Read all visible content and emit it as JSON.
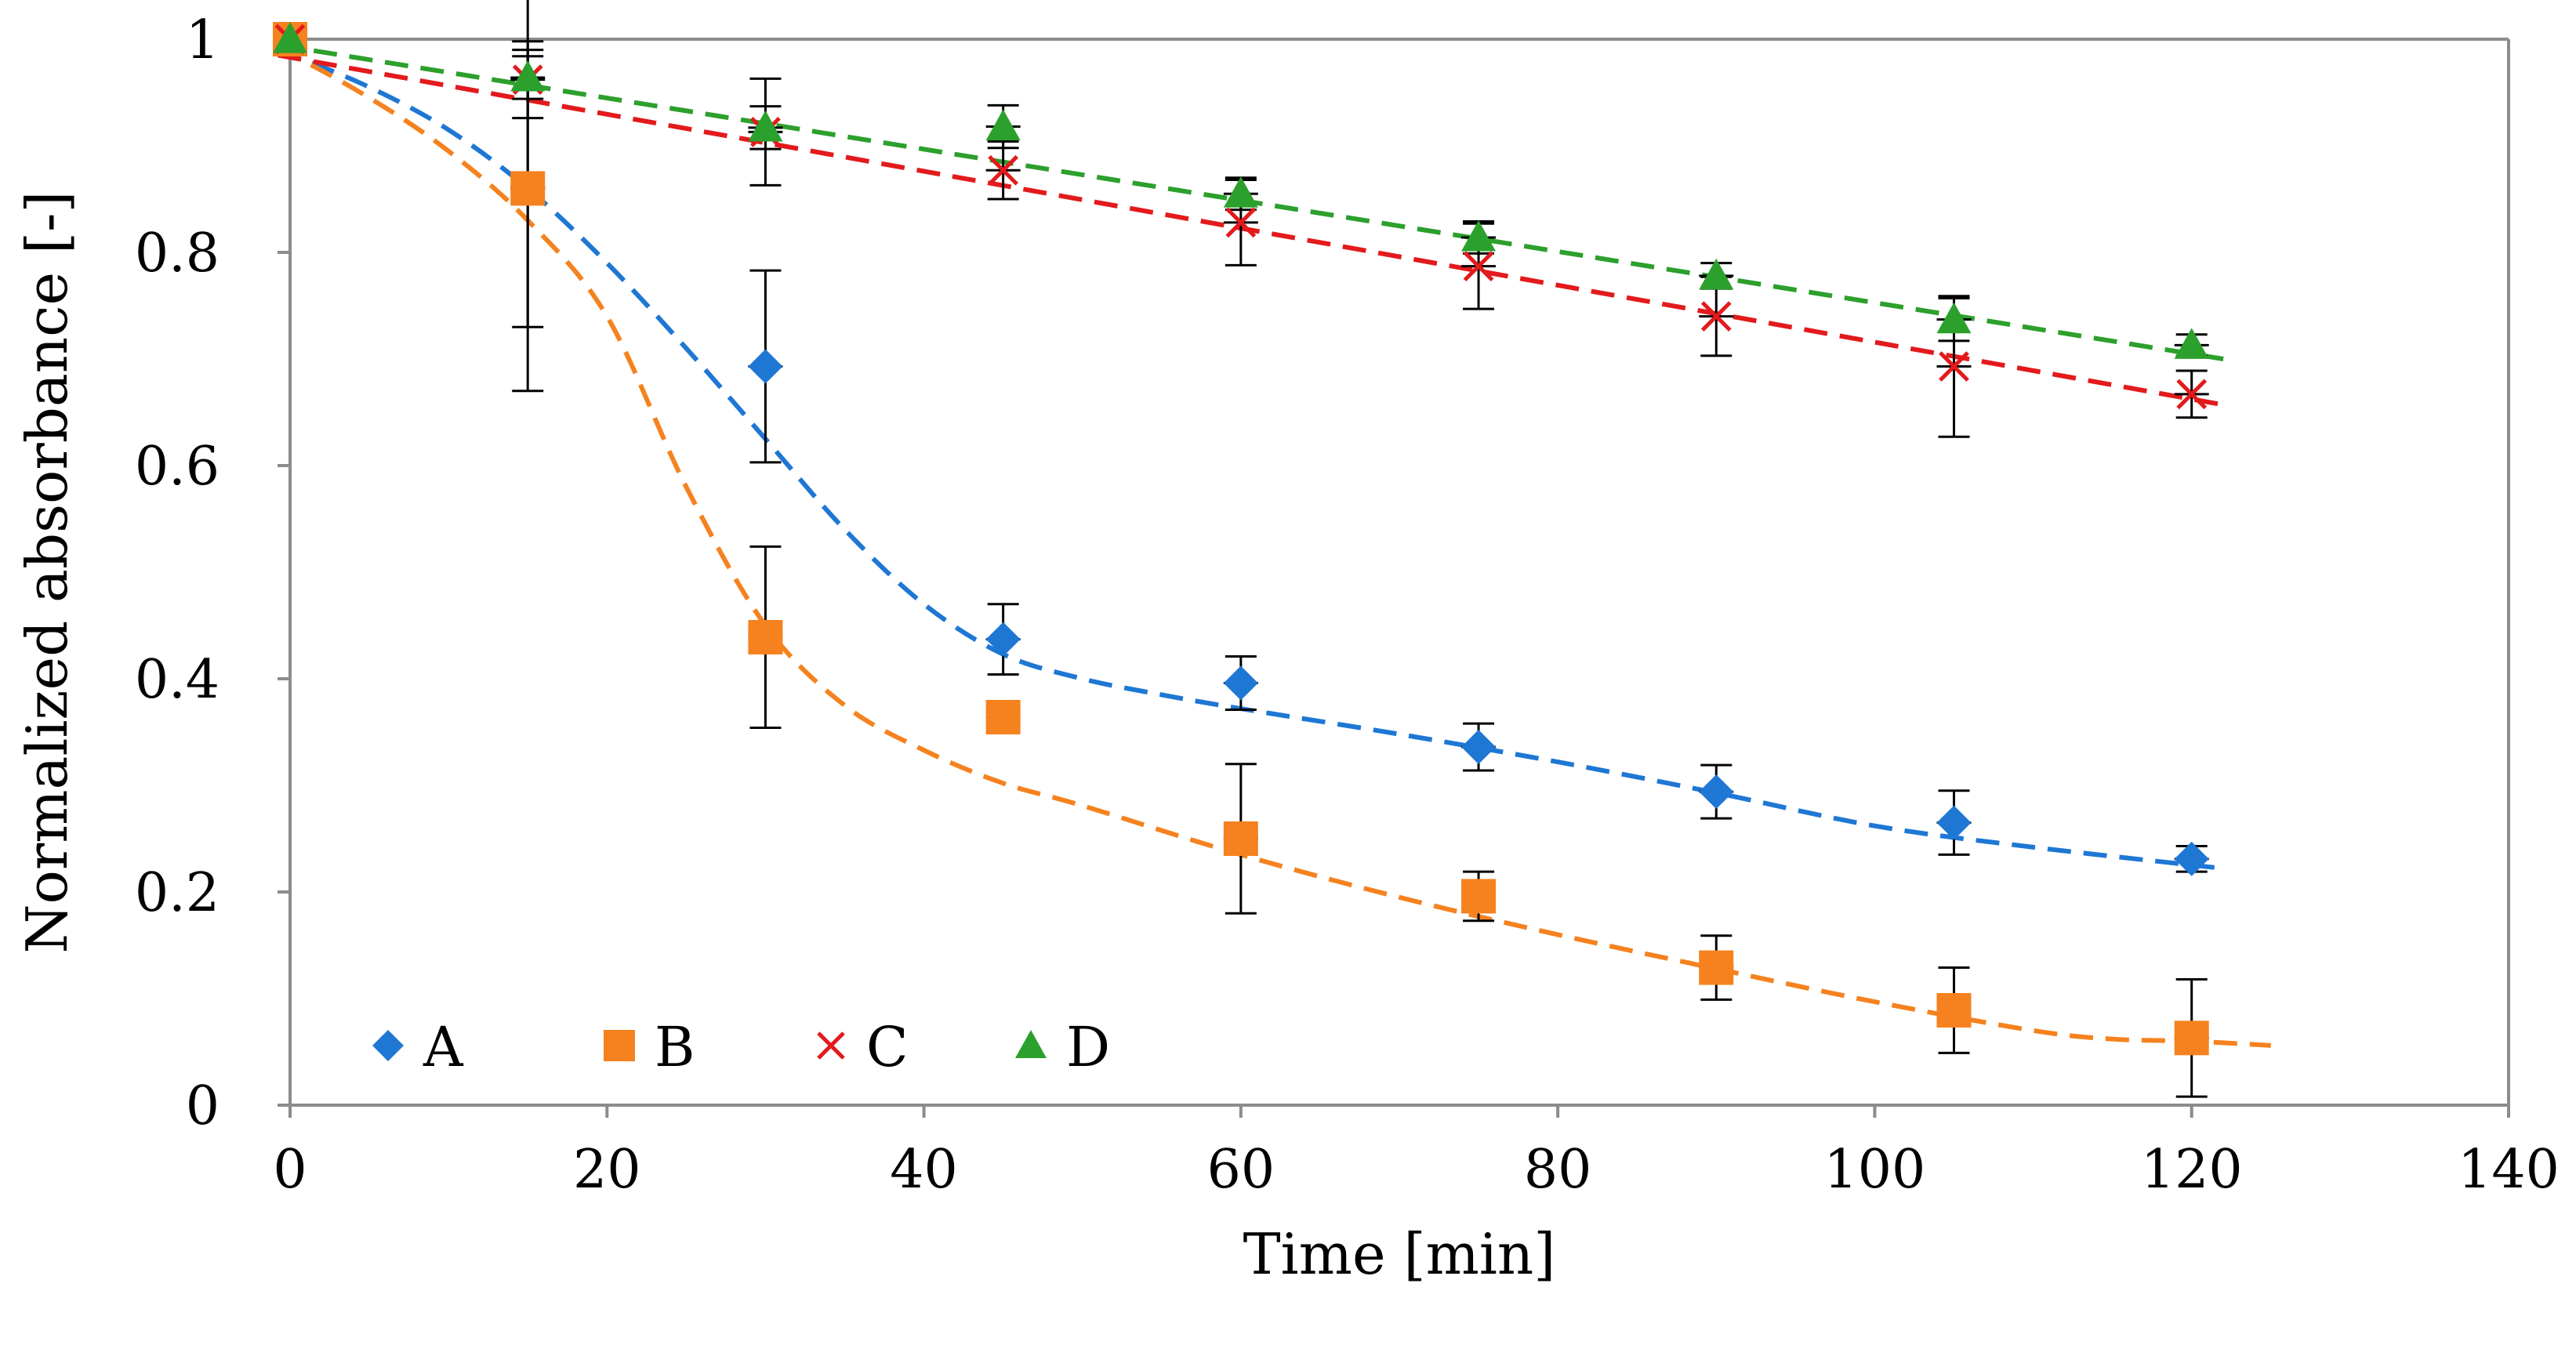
{
  "chart_data": {
    "type": "scatter",
    "title": "",
    "xlabel": "Time [min]",
    "ylabel": "Normalized absorbance [-]",
    "xlim": [
      0,
      140
    ],
    "ylim": [
      0,
      1
    ],
    "xticks": [
      0,
      20,
      40,
      60,
      80,
      100,
      120,
      140
    ],
    "yticks": [
      0,
      0.2,
      0.4,
      0.6,
      0.8,
      1
    ],
    "xtick_labels": [
      "0",
      "20",
      "40",
      "60",
      "80",
      "100",
      "120",
      "140"
    ],
    "ytick_labels": [
      "0",
      "0.2",
      "0.4",
      "0.6",
      "0.8",
      "1"
    ],
    "grid": false,
    "legend_position": "bottom-left",
    "series": [
      {
        "name": "A",
        "marker": "diamond",
        "color": "#1f77d4",
        "x": [
          0,
          15,
          30,
          45,
          60,
          75,
          90,
          105,
          120
        ],
        "y": [
          1.0,
          0.86,
          0.693,
          0.437,
          0.396,
          0.336,
          0.294,
          0.265,
          0.231
        ],
        "err": [
          0.005,
          0.13,
          0.09,
          0.033,
          0.025,
          0.022,
          0.025,
          0.03,
          0.012
        ],
        "fit": {
          "x": [
            -3,
            0,
            5,
            10,
            15,
            20,
            25,
            30,
            35,
            40,
            45,
            50,
            55,
            60,
            70,
            80,
            90,
            100,
            110,
            122
          ],
          "y": [
            0.995,
            0.985,
            0.955,
            0.915,
            0.86,
            0.79,
            0.71,
            0.625,
            0.54,
            0.47,
            0.423,
            0.4,
            0.385,
            0.372,
            0.348,
            0.322,
            0.293,
            0.262,
            0.242,
            0.222
          ]
        }
      },
      {
        "name": "B",
        "marker": "square",
        "color": "#f5821f",
        "x": [
          0,
          15,
          30,
          45,
          60,
          75,
          90,
          105,
          120
        ],
        "y": [
          1.0,
          0.86,
          0.439,
          0.364,
          0.25,
          0.196,
          0.129,
          0.089,
          0.063
        ],
        "err": [
          0.005,
          0.19,
          0.085,
          0.005,
          0.07,
          0.023,
          0.03,
          0.04,
          0.055
        ],
        "fit": {
          "x": [
            -3,
            0,
            5,
            10,
            15,
            20,
            25,
            30,
            35,
            40,
            45,
            50,
            60,
            70,
            80,
            90,
            100,
            110,
            115,
            120,
            125
          ],
          "y": [
            0.995,
            0.985,
            0.945,
            0.895,
            0.83,
            0.74,
            0.58,
            0.45,
            0.375,
            0.333,
            0.302,
            0.281,
            0.235,
            0.195,
            0.16,
            0.128,
            0.097,
            0.07,
            0.062,
            0.06,
            0.056
          ]
        }
      },
      {
        "name": "C",
        "marker": "x",
        "color": "#e31a1c",
        "x": [
          0,
          15,
          30,
          45,
          60,
          75,
          90,
          105,
          120
        ],
        "y": [
          1.0,
          0.962,
          0.913,
          0.877,
          0.828,
          0.787,
          0.74,
          0.693,
          0.667
        ],
        "err": [
          0.005,
          0.036,
          0.05,
          0.027,
          0.04,
          0.04,
          0.037,
          0.066,
          0.022
        ],
        "fit": {
          "x": [
            -3,
            122
          ],
          "y": [
            0.991,
            0.657
          ]
        }
      },
      {
        "name": "D",
        "marker": "triangle",
        "color": "#2ca02c",
        "x": [
          0,
          15,
          30,
          45,
          60,
          75,
          90,
          105,
          120
        ],
        "y": [
          1.0,
          0.964,
          0.917,
          0.918,
          0.855,
          0.814,
          0.778,
          0.737,
          0.713
        ],
        "err": [
          0.005,
          0.02,
          0.02,
          0.02,
          0.015,
          0.015,
          0.012,
          0.02,
          0.01
        ],
        "fit": {
          "x": [
            -3,
            122
          ],
          "y": [
            1.0,
            0.7
          ]
        }
      }
    ]
  }
}
